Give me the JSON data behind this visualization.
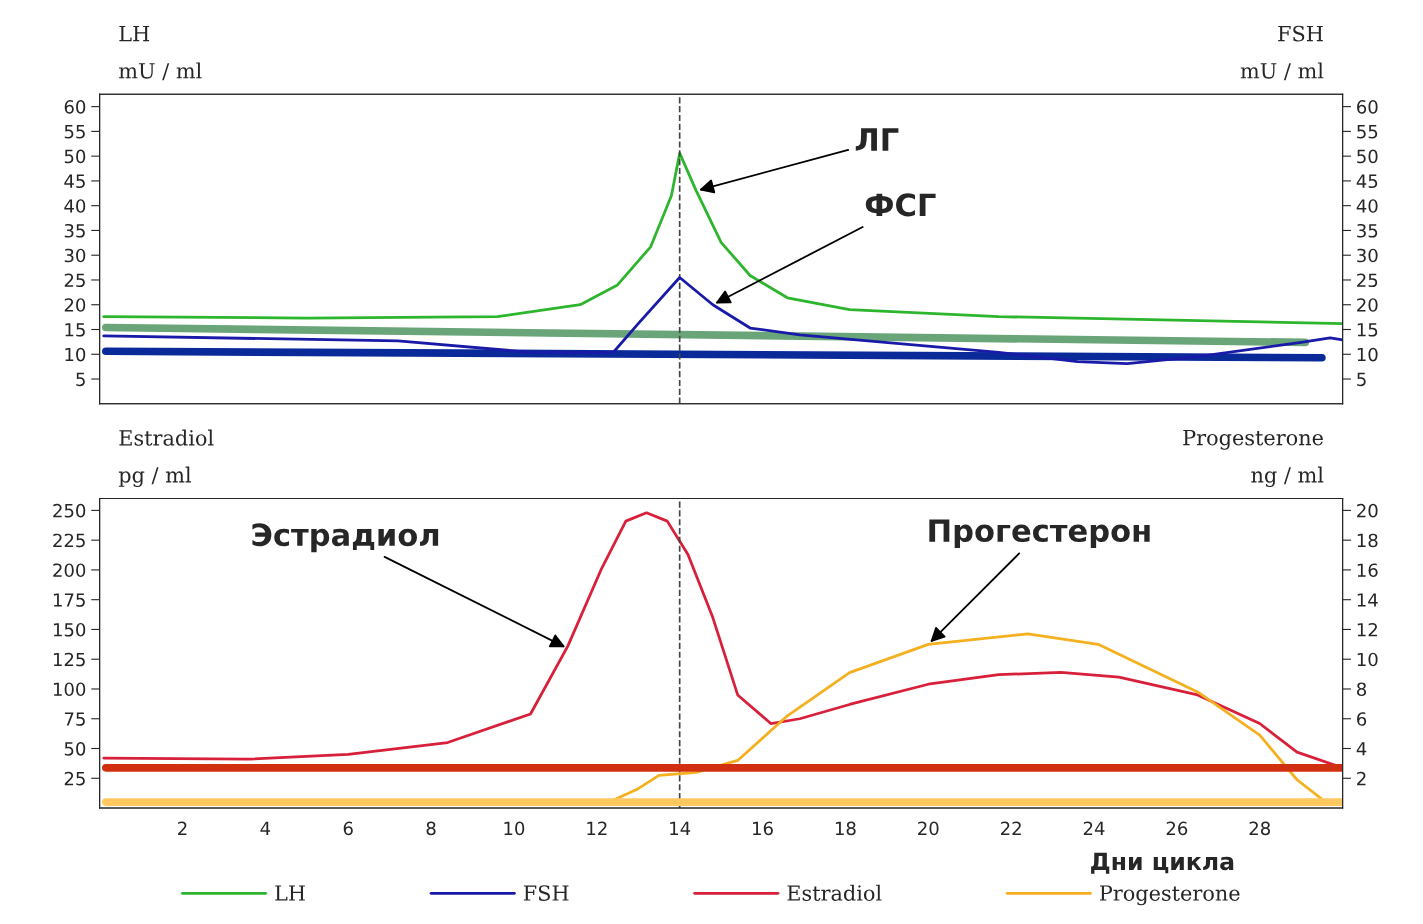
{
  "chart_data": [
    {
      "type": "line",
      "ylabel": "LH",
      "y2label": "FSH",
      "xlim": [
        0,
        30
      ],
      "ylim": [
        0,
        62.5
      ],
      "yticks": [
        5,
        10,
        15,
        20,
        25,
        30,
        35,
        40,
        45,
        50,
        55,
        60
      ],
      "y2lim": [
        0,
        62.5
      ],
      "y2ticks": [
        5,
        10,
        15,
        20,
        25,
        30,
        35,
        40,
        45,
        50,
        55,
        60
      ],
      "tick_labels": "y",
      "grid": false,
      "legend": "bottom",
      "annotations": [
        "mU / ml",
        "mU / ml",
        {
          "text": "ЛГ",
          "x": 14.4,
          "y": 43
        },
        {
          "text": "ФСГ",
          "x": 14.8,
          "y": 20
        }
      ],
      "ref_lines": [
        {
          "axis": "x",
          "value": 14,
          "color": "#444444",
          "line_style": "dashed"
        }
      ],
      "series": [
        {
          "name": "LH",
          "color": "#2db52d",
          "x": [
            0.1,
            5,
            9.6,
            11.6,
            12.5,
            13.3,
            13.8,
            14,
            14.4,
            15,
            15.7,
            16.6,
            18.1,
            21.7,
            30
          ],
          "values": [
            17.6,
            17.3,
            17.6,
            20,
            24,
            31.7,
            42,
            50.6,
            43,
            32.6,
            25.9,
            21.4,
            19,
            17.6,
            16.2
          ]
        },
        {
          "name": "FSH",
          "color": "#1a1aa8",
          "axis": "y2",
          "x": [
            0.1,
            7.2,
            10.4,
            12.4,
            13,
            14,
            14.8,
            15.7,
            16.9,
            21.7,
            23.6,
            24.8,
            26.5,
            29,
            29.7,
            30
          ],
          "values": [
            13.7,
            12.7,
            10.4,
            10.4,
            16.2,
            25.5,
            20,
            15.3,
            13.9,
            10.4,
            8.5,
            8.1,
            9.5,
            12.4,
            13.3,
            12.9
          ]
        },
        {
          "color": "#6aa57a",
          "x": [
            0.15,
            29.1
          ],
          "values": [
            15.4,
            12.4
          ]
        },
        {
          "color": "#0a2a9a",
          "x": [
            0.15,
            29.5
          ],
          "values": [
            10.6,
            9.3
          ]
        }
      ]
    },
    {
      "type": "line",
      "ylabel": "Estradiol",
      "y2label": "Progesterone",
      "xlabel": "Дни цикла",
      "xlim": [
        0,
        30
      ],
      "xticks": [
        2,
        4,
        6,
        8,
        10,
        12,
        14,
        16,
        18,
        20,
        22,
        24,
        26,
        28
      ],
      "ylim": [
        0,
        260
      ],
      "yticks": [
        25,
        50,
        75,
        100,
        125,
        150,
        175,
        200,
        225,
        250
      ],
      "y2lim": [
        0,
        20.8
      ],
      "y2ticks": [
        2,
        4,
        6,
        8,
        10,
        12,
        14,
        16,
        18,
        20
      ],
      "grid": false,
      "legend": "bottom",
      "annotations": [
        "pg / ml",
        "ng / ml",
        {
          "text": "Эстрадиол",
          "x": 11.3,
          "y": 134
        },
        {
          "text": "Прогестерон",
          "x": 20,
          "y": 137.5
        }
      ],
      "ref_lines": [
        {
          "axis": "x",
          "value": 14,
          "color": "#444444",
          "line_style": "dashed"
        }
      ],
      "series": [
        {
          "name": "Estradiol",
          "color": "#d8203a",
          "x": [
            0.1,
            3.6,
            6,
            8.4,
            10.4,
            11.3,
            12.1,
            12.7,
            13.2,
            13.7,
            14.2,
            14.8,
            15.4,
            16.2,
            16.9,
            18.1,
            20,
            21.7,
            23.2,
            24.6,
            26.5,
            28,
            28.9,
            29.9
          ],
          "values": [
            42,
            41,
            45,
            55,
            79,
            136,
            200,
            241,
            248,
            241,
            213,
            160,
            95,
            71,
            75,
            87,
            104,
            112,
            114,
            110,
            95,
            71,
            47,
            35
          ]
        },
        {
          "name": "Progesterone",
          "color": "#f5b020",
          "axis": "y2",
          "x": [
            0.1,
            12.3,
            13,
            13.5,
            14.4,
            15.4,
            16.6,
            18.1,
            20,
            22.4,
            24.1,
            26.5,
            28,
            28.9,
            29.5
          ],
          "values": [
            0.4,
            0.4,
            1.3,
            2.2,
            2.4,
            3.2,
            6.2,
            9.1,
            11,
            11.7,
            11,
            7.8,
            4.9,
            1.9,
            0.6
          ]
        },
        {
          "color": "#d03010",
          "axis": "y2",
          "x": [
            0.15,
            30
          ],
          "values": [
            2.7,
            2.7
          ]
        },
        {
          "color": "#ffc860",
          "axis": "y2",
          "x": [
            0.15,
            30
          ],
          "values": [
            0.4,
            0.4
          ]
        }
      ]
    }
  ]
}
